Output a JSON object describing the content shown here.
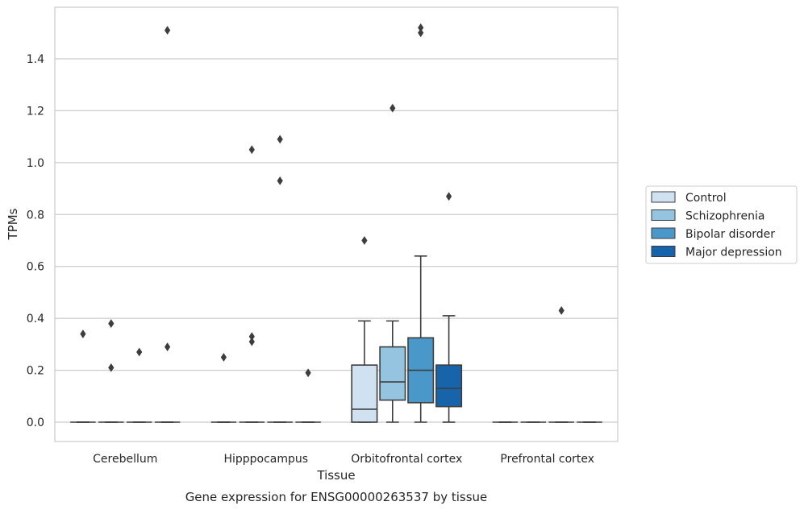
{
  "chart_data": {
    "type": "box",
    "caption": "Gene expression for ENSG00000263537 by tissue",
    "xlabel": "Tissue",
    "ylabel": "TPMs",
    "ylim": [
      -0.07,
      1.6
    ],
    "yticks": [
      0.0,
      0.2,
      0.4,
      0.6,
      0.8,
      1.0,
      1.2,
      1.4
    ],
    "ytick_labels": [
      "0.0",
      "0.2",
      "0.4",
      "0.6",
      "0.8",
      "1.0",
      "1.2",
      "1.4"
    ],
    "grid": "horizontal",
    "legend_position": "right",
    "categories": [
      "Cerebellum",
      "Hipppocampus",
      "Orbitofrontal cortex",
      "Prefrontal cortex"
    ],
    "series": [
      {
        "name": "Control",
        "color": "#d0e1f2",
        "boxes": [
          {
            "whisker_low": 0,
            "q1": 0,
            "median": 0,
            "q3": 0,
            "whisker_high": 0,
            "outliers": [
              0.34
            ]
          },
          {
            "whisker_low": 0,
            "q1": 0,
            "median": 0,
            "q3": 0,
            "whisker_high": 0,
            "outliers": [
              0.25
            ]
          },
          {
            "whisker_low": 0,
            "q1": 0,
            "median": 0.05,
            "q3": 0.22,
            "whisker_high": 0.39,
            "outliers": [
              0.7
            ]
          },
          {
            "whisker_low": 0,
            "q1": 0,
            "median": 0,
            "q3": 0,
            "whisker_high": 0,
            "outliers": []
          }
        ]
      },
      {
        "name": "Schizophrenia",
        "color": "#94c4df",
        "boxes": [
          {
            "whisker_low": 0,
            "q1": 0,
            "median": 0,
            "q3": 0,
            "whisker_high": 0,
            "outliers": [
              0.38,
              0.21
            ]
          },
          {
            "whisker_low": 0,
            "q1": 0,
            "median": 0,
            "q3": 0,
            "whisker_high": 0,
            "outliers": [
              1.05,
              0.33,
              0.31
            ]
          },
          {
            "whisker_low": 0,
            "q1": 0.085,
            "median": 0.155,
            "q3": 0.29,
            "whisker_high": 0.39,
            "outliers": [
              1.21
            ]
          },
          {
            "whisker_low": 0,
            "q1": 0,
            "median": 0,
            "q3": 0,
            "whisker_high": 0,
            "outliers": []
          }
        ]
      },
      {
        "name": "Bipolar disorder",
        "color": "#4a98c9",
        "boxes": [
          {
            "whisker_low": 0,
            "q1": 0,
            "median": 0,
            "q3": 0,
            "whisker_high": 0,
            "outliers": [
              0.27
            ]
          },
          {
            "whisker_low": 0,
            "q1": 0,
            "median": 0,
            "q3": 0,
            "whisker_high": 0,
            "outliers": [
              1.09,
              0.93
            ]
          },
          {
            "whisker_low": 0,
            "q1": 0.075,
            "median": 0.2,
            "q3": 0.325,
            "whisker_high": 0.64,
            "outliers": [
              1.52,
              1.5
            ]
          },
          {
            "whisker_low": 0,
            "q1": 0,
            "median": 0,
            "q3": 0,
            "whisker_high": 0,
            "outliers": [
              0.43
            ]
          }
        ]
      },
      {
        "name": "Major depression",
        "color": "#1764ab",
        "boxes": [
          {
            "whisker_low": 0,
            "q1": 0,
            "median": 0,
            "q3": 0,
            "whisker_high": 0,
            "outliers": [
              1.51,
              0.29
            ]
          },
          {
            "whisker_low": 0,
            "q1": 0,
            "median": 0,
            "q3": 0,
            "whisker_high": 0,
            "outliers": [
              0.19
            ]
          },
          {
            "whisker_low": 0,
            "q1": 0.06,
            "median": 0.13,
            "q3": 0.22,
            "whisker_high": 0.41,
            "outliers": [
              0.87
            ]
          },
          {
            "whisker_low": 0,
            "q1": 0,
            "median": 0,
            "q3": 0,
            "whisker_high": 0,
            "outliers": []
          }
        ]
      }
    ]
  }
}
